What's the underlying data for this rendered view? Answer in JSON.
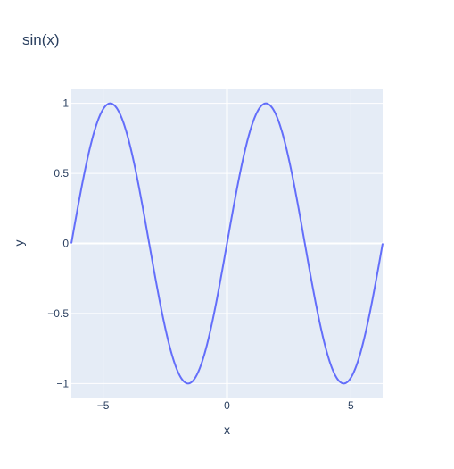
{
  "chart_data": {
    "type": "line",
    "title": "sin(x)",
    "xlabel": "x",
    "ylabel": "y",
    "xlim": [
      -6.2832,
      6.2832
    ],
    "ylim": [
      -1.1,
      1.1
    ],
    "x_ticks": [
      {
        "value": -5,
        "label": "−5"
      },
      {
        "value": 0,
        "label": "0"
      },
      {
        "value": 5,
        "label": "5"
      }
    ],
    "y_ticks": [
      {
        "value": -1,
        "label": "−1"
      },
      {
        "value": -0.5,
        "label": "−0.5"
      },
      {
        "value": 0,
        "label": "0"
      },
      {
        "value": 0.5,
        "label": "0.5"
      },
      {
        "value": 1,
        "label": "1"
      }
    ],
    "grid": true,
    "colors": {
      "line": "#636efa",
      "plot_bg": "#e5ecf6",
      "grid": "#ffffff",
      "text": "#2a3f5f"
    },
    "series": [
      {
        "x": [
          -6.2832,
          -5.969,
          -5.6549,
          -5.3407,
          -5.0265,
          -4.7124,
          -4.3982,
          -4.0841,
          -3.7699,
          -3.4558,
          -3.1416,
          -2.8274,
          -2.5133,
          -2.1991,
          -1.885,
          -1.5708,
          -1.2566,
          -0.9425,
          -0.6283,
          -0.3142,
          0.0,
          0.3142,
          0.6283,
          0.9425,
          1.2566,
          1.5708,
          1.885,
          2.1991,
          2.5133,
          2.8274,
          3.1416,
          3.4558,
          3.7699,
          4.0841,
          4.3982,
          4.7124,
          5.0265,
          5.3407,
          5.6549,
          5.969,
          6.2832
        ],
        "y": [
          0.0,
          0.309,
          0.5878,
          0.809,
          0.9511,
          1.0,
          0.9511,
          0.809,
          0.5878,
          0.309,
          0.0,
          -0.309,
          -0.5878,
          -0.809,
          -0.9511,
          -1.0,
          -0.9511,
          -0.809,
          -0.5878,
          -0.309,
          0.0,
          0.309,
          0.5878,
          0.809,
          0.9511,
          1.0,
          0.9511,
          0.809,
          0.5878,
          0.309,
          0.0,
          -0.309,
          -0.5878,
          -0.809,
          -0.9511,
          -1.0,
          -0.9511,
          -0.809,
          -0.5878,
          -0.309,
          0.0
        ]
      }
    ]
  }
}
